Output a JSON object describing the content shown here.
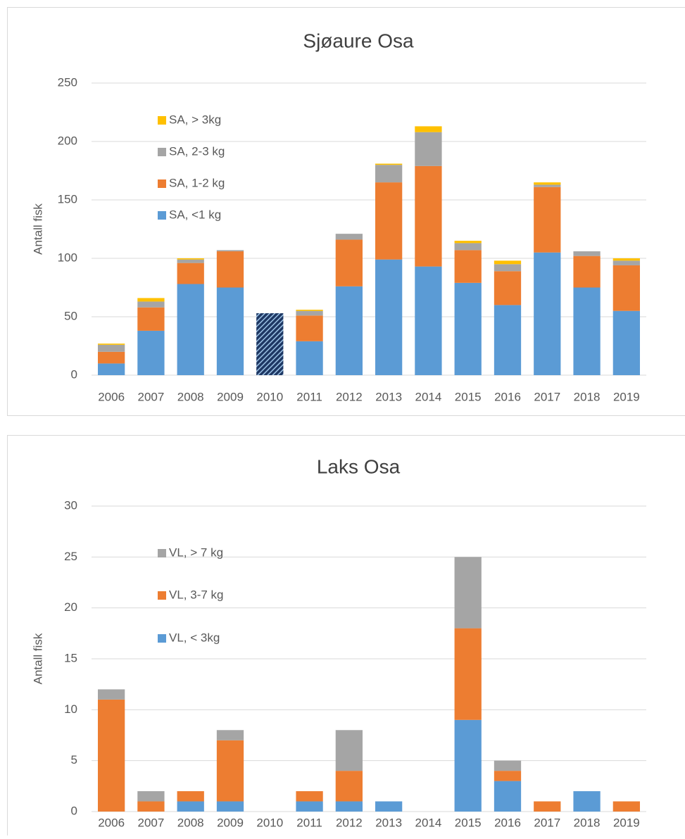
{
  "chart_data": [
    {
      "type": "bar",
      "stacked": true,
      "title": "Sjøaure Osa",
      "y_label": "Antall fisk",
      "categories": [
        "2006",
        "2007",
        "2008",
        "2009",
        "2010",
        "2011",
        "2012",
        "2013",
        "2014",
        "2015",
        "2016",
        "2017",
        "2018",
        "2019"
      ],
      "hatched_category": "2010",
      "series": [
        {
          "name": "SA, <1 kg",
          "color": "#5b9bd5",
          "values": [
            10,
            38,
            78,
            75,
            53,
            29,
            76,
            99,
            93,
            79,
            60,
            105,
            75,
            55
          ]
        },
        {
          "name": "SA, 1-2 kg",
          "color": "#ed7d31",
          "values": [
            10,
            20,
            18,
            31,
            0,
            22,
            40,
            66,
            86,
            28,
            29,
            56,
            27,
            39
          ]
        },
        {
          "name": "SA, 2-3 kg",
          "color": "#a5a5a5",
          "values": [
            6,
            5,
            3,
            1,
            0,
            4,
            5,
            15,
            29,
            6,
            6,
            2,
            4,
            4
          ]
        },
        {
          "name": "SA, > 3kg",
          "color": "#ffc000",
          "values": [
            1,
            3,
            1,
            0,
            0,
            1,
            0,
            1,
            5,
            2,
            3,
            2,
            0,
            2
          ]
        }
      ],
      "ylim": [
        0,
        250
      ],
      "yticks": [
        0,
        50,
        100,
        150,
        200,
        250
      ],
      "grid": true,
      "legend": "upper left"
    },
    {
      "type": "bar",
      "stacked": true,
      "title": "Laks Osa",
      "y_label": "Antall fisk",
      "categories": [
        "2006",
        "2007",
        "2008",
        "2009",
        "2010",
        "2011",
        "2012",
        "2013",
        "2014",
        "2015",
        "2016",
        "2017",
        "2018",
        "2019"
      ],
      "series": [
        {
          "name": "VL, < 3kg",
          "color": "#5b9bd5",
          "values": [
            0,
            0,
            1,
            1,
            0,
            1,
            1,
            1,
            0,
            9,
            3,
            0,
            2,
            0
          ]
        },
        {
          "name": "VL, 3-7 kg",
          "color": "#ed7d31",
          "values": [
            11,
            1,
            1,
            6,
            0,
            1,
            3,
            0,
            0,
            9,
            1,
            1,
            0,
            1
          ]
        },
        {
          "name": "VL, > 7 kg",
          "color": "#a5a5a5",
          "values": [
            1,
            1,
            0,
            1,
            0,
            0,
            4,
            0,
            0,
            7,
            1,
            0,
            0,
            0
          ]
        }
      ],
      "ylim": [
        0,
        30
      ],
      "yticks": [
        0,
        5,
        10,
        15,
        20,
        25,
        30
      ],
      "grid": true,
      "legend": "upper left"
    }
  ]
}
